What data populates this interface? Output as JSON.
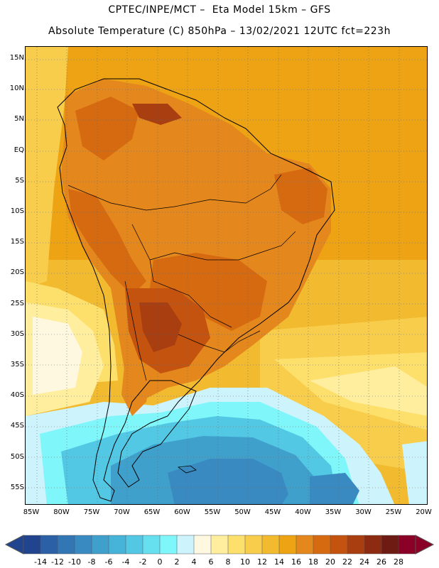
{
  "header": {
    "line1": "CPTEC/INPE/MCT –  Eta Model 15km – GFS",
    "line2": "Absolute Temperature (C) 850hPa – 13/02/2021 12UTC fct=223h"
  },
  "map": {
    "lat_labels": [
      "15N",
      "10N",
      "5N",
      "EQ",
      "5S",
      "10S",
      "15S",
      "20S",
      "25S",
      "30S",
      "35S",
      "40S",
      "45S",
      "50S",
      "55S"
    ],
    "lon_labels": [
      "85W",
      "80W",
      "75W",
      "70W",
      "65W",
      "60W",
      "55W",
      "50W",
      "45W",
      "40W",
      "35W",
      "30W",
      "25W",
      "20W"
    ]
  },
  "colorbar": {
    "labels": [
      "-14",
      "-12",
      "-10",
      "-8",
      "-6",
      "-4",
      "-2",
      "0",
      "2",
      "4",
      "6",
      "8",
      "10",
      "12",
      "14",
      "16",
      "18",
      "20",
      "22",
      "24",
      "26",
      "28"
    ],
    "colors": [
      "#21448f",
      "#2b60a6",
      "#3276b4",
      "#3a8ac2",
      "#40a0cc",
      "#46b4d8",
      "#52c8e4",
      "#66e0ee",
      "#7ef6fa",
      "#cdf4fd",
      "#fff8e1",
      "#ffee9e",
      "#fddf6c",
      "#f8cd4b",
      "#f1ba2f",
      "#eda314",
      "#e4871d",
      "#d66a10",
      "#c45310",
      "#a93e10",
      "#8c2a12",
      "#6e1b14",
      "#8a0027"
    ],
    "low_arrow_color": "#21448f",
    "high_arrow_color": "#8a0027"
  }
}
